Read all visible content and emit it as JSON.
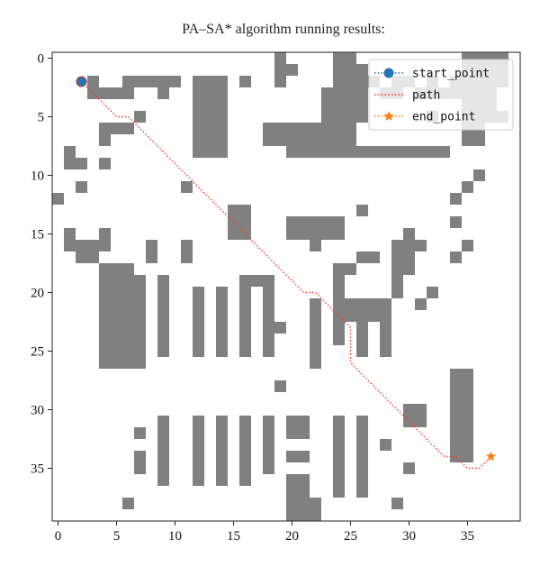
{
  "chart_data": {
    "type": "scatter",
    "title": "PA–SA* algorithm running results:",
    "xlabel": "",
    "ylabel": "",
    "xlim": [
      -0.5,
      39.5
    ],
    "ylim": [
      39.5,
      -0.5
    ],
    "y_inverted": true,
    "x_ticks": [
      0,
      5,
      10,
      15,
      20,
      25,
      30,
      35
    ],
    "y_ticks": [
      0,
      5,
      10,
      15,
      20,
      25,
      30,
      35
    ],
    "grid": false,
    "legend_position": "top-right",
    "obstacle_color": "#808080",
    "obstacles": [
      [
        0,
        19,
        1,
        1
      ],
      [
        0,
        24,
        1,
        2
      ],
      [
        0,
        35,
        1,
        1
      ],
      [
        0,
        36,
        1,
        3
      ],
      [
        1,
        19,
        1,
        2
      ],
      [
        1,
        24,
        1,
        3
      ],
      [
        1,
        35,
        1,
        4
      ],
      [
        2,
        3,
        1,
        1
      ],
      [
        2,
        6,
        1,
        3
      ],
      [
        2,
        9,
        1,
        2
      ],
      [
        2,
        12,
        1,
        3
      ],
      [
        2,
        16,
        1,
        1
      ],
      [
        2,
        19,
        1,
        1
      ],
      [
        2,
        24,
        1,
        4
      ],
      [
        2,
        29,
        1,
        2
      ],
      [
        2,
        32,
        1,
        1
      ],
      [
        2,
        34,
        1,
        5
      ],
      [
        3,
        3,
        1,
        4
      ],
      [
        3,
        9,
        1,
        1
      ],
      [
        3,
        12,
        1,
        3
      ],
      [
        3,
        23,
        1,
        4
      ],
      [
        3,
        28,
        1,
        2
      ],
      [
        3,
        31,
        1,
        3
      ],
      [
        3,
        34,
        1,
        4
      ],
      [
        4,
        12,
        1,
        3
      ],
      [
        4,
        23,
        1,
        4
      ],
      [
        4,
        35,
        1,
        3
      ],
      [
        5,
        7,
        1,
        1
      ],
      [
        5,
        12,
        1,
        3
      ],
      [
        5,
        23,
        1,
        4
      ],
      [
        5,
        32,
        1,
        1
      ],
      [
        5,
        35,
        1,
        4
      ],
      [
        6,
        4,
        1,
        3
      ],
      [
        6,
        12,
        1,
        3
      ],
      [
        6,
        18,
        1,
        8
      ],
      [
        6,
        35,
        1,
        2
      ],
      [
        7,
        4,
        1,
        1
      ],
      [
        7,
        12,
        1,
        3
      ],
      [
        7,
        18,
        1,
        8
      ],
      [
        7,
        35,
        1,
        2
      ],
      [
        8,
        1,
        1,
        1
      ],
      [
        8,
        12,
        1,
        3
      ],
      [
        8,
        20,
        1,
        14
      ],
      [
        9,
        1,
        1,
        2
      ],
      [
        9,
        4,
        1,
        1
      ],
      [
        10,
        36,
        1,
        1
      ],
      [
        11,
        2,
        1,
        1
      ],
      [
        11,
        11,
        1,
        1
      ],
      [
        11,
        35,
        1,
        1
      ],
      [
        12,
        0,
        1,
        1
      ],
      [
        12,
        34,
        1,
        1
      ],
      [
        13,
        15,
        1,
        2
      ],
      [
        13,
        26,
        1,
        1
      ],
      [
        14,
        15,
        1,
        2
      ],
      [
        14,
        20,
        1,
        5
      ],
      [
        14,
        34,
        1,
        1
      ],
      [
        15,
        1,
        1,
        1
      ],
      [
        15,
        4,
        1,
        1
      ],
      [
        15,
        15,
        1,
        2
      ],
      [
        15,
        20,
        1,
        5
      ],
      [
        15,
        30,
        1,
        1
      ],
      [
        16,
        1,
        1,
        2
      ],
      [
        16,
        3,
        1,
        2
      ],
      [
        16,
        8,
        1,
        1
      ],
      [
        16,
        11,
        1,
        1
      ],
      [
        16,
        22,
        1,
        1
      ],
      [
        16,
        29,
        1,
        3
      ],
      [
        16,
        35,
        1,
        1
      ],
      [
        17,
        2,
        1,
        1
      ],
      [
        17,
        3,
        1,
        1
      ],
      [
        17,
        8,
        1,
        1
      ],
      [
        17,
        11,
        1,
        1
      ],
      [
        17,
        26,
        1,
        2
      ],
      [
        17,
        29,
        1,
        2
      ],
      [
        17,
        34,
        1,
        1
      ],
      [
        18,
        4,
        1,
        3
      ],
      [
        18,
        24,
        1,
        2
      ],
      [
        18,
        29,
        1,
        2
      ],
      [
        19,
        4,
        1,
        4
      ],
      [
        19,
        9,
        1,
        1
      ],
      [
        19,
        16,
        1,
        1
      ],
      [
        19,
        17,
        1,
        1
      ],
      [
        19,
        18,
        1,
        1
      ],
      [
        19,
        24,
        1,
        1
      ],
      [
        19,
        29,
        1,
        1
      ],
      [
        20,
        4,
        1,
        4
      ],
      [
        20,
        9,
        1,
        1
      ],
      [
        20,
        12,
        1,
        1
      ],
      [
        20,
        14,
        1,
        1
      ],
      [
        20,
        16,
        1,
        1
      ],
      [
        20,
        18,
        1,
        1
      ],
      [
        20,
        24,
        1,
        1
      ],
      [
        20,
        29,
        1,
        1
      ],
      [
        20,
        32,
        1,
        1
      ],
      [
        21,
        4,
        1,
        4
      ],
      [
        21,
        9,
        1,
        1
      ],
      [
        21,
        12,
        1,
        1
      ],
      [
        21,
        14,
        1,
        1
      ],
      [
        21,
        16,
        1,
        1
      ],
      [
        21,
        18,
        1,
        1
      ],
      [
        21,
        22,
        1,
        1
      ],
      [
        21,
        24,
        1,
        1
      ],
      [
        21,
        25,
        1,
        1
      ],
      [
        21,
        26,
        1,
        1
      ],
      [
        21,
        27,
        1,
        1
      ],
      [
        21,
        28,
        1,
        1
      ],
      [
        21,
        31,
        1,
        1
      ],
      [
        22,
        4,
        1,
        4
      ],
      [
        22,
        9,
        1,
        1
      ],
      [
        22,
        12,
        1,
        1
      ],
      [
        22,
        14,
        1,
        1
      ],
      [
        22,
        16,
        1,
        1
      ],
      [
        22,
        18,
        1,
        1
      ],
      [
        22,
        22,
        1,
        1
      ],
      [
        22,
        24,
        1,
        1
      ],
      [
        22,
        25,
        1,
        1
      ],
      [
        22,
        26,
        1,
        1
      ],
      [
        22,
        27,
        1,
        1
      ],
      [
        22,
        28,
        1,
        1
      ],
      [
        23,
        4,
        1,
        4
      ],
      [
        23,
        9,
        1,
        1
      ],
      [
        23,
        12,
        1,
        1
      ],
      [
        23,
        14,
        1,
        1
      ],
      [
        23,
        16,
        1,
        1
      ],
      [
        23,
        18,
        1,
        1
      ],
      [
        23,
        19,
        1,
        1
      ],
      [
        23,
        22,
        1,
        1
      ],
      [
        23,
        24,
        1,
        1
      ],
      [
        23,
        26,
        1,
        1
      ],
      [
        23,
        28,
        1,
        1
      ],
      [
        24,
        4,
        1,
        4
      ],
      [
        24,
        9,
        1,
        1
      ],
      [
        24,
        12,
        1,
        1
      ],
      [
        24,
        14,
        1,
        1
      ],
      [
        24,
        16,
        1,
        1
      ],
      [
        24,
        18,
        1,
        1
      ],
      [
        24,
        22,
        1,
        1
      ],
      [
        24,
        24,
        1,
        1
      ],
      [
        24,
        26,
        1,
        1
      ],
      [
        24,
        28,
        1,
        1
      ],
      [
        25,
        4,
        1,
        4
      ],
      [
        25,
        9,
        1,
        1
      ],
      [
        25,
        12,
        1,
        1
      ],
      [
        25,
        14,
        1,
        1
      ],
      [
        25,
        16,
        1,
        1
      ],
      [
        25,
        18,
        1,
        1
      ],
      [
        25,
        22,
        1,
        1
      ],
      [
        25,
        26,
        1,
        1
      ],
      [
        25,
        28,
        1,
        1
      ],
      [
        26,
        4,
        1,
        4
      ],
      [
        26,
        22,
        1,
        1
      ],
      [
        27,
        34,
        1,
        1
      ],
      [
        27,
        35,
        1,
        1
      ],
      [
        28,
        19,
        1,
        1
      ],
      [
        28,
        34,
        1,
        2
      ],
      [
        29,
        34,
        1,
        2
      ],
      [
        30,
        34,
        1,
        2
      ],
      [
        30,
        30,
        1,
        2
      ],
      [
        31,
        9,
        1,
        1
      ],
      [
        31,
        12,
        1,
        1
      ],
      [
        31,
        14,
        1,
        1
      ],
      [
        31,
        16,
        1,
        1
      ],
      [
        31,
        18,
        1,
        1
      ],
      [
        31,
        20,
        1,
        2
      ],
      [
        31,
        24,
        1,
        1
      ],
      [
        31,
        26,
        1,
        1
      ],
      [
        31,
        30,
        1,
        2
      ],
      [
        31,
        34,
        1,
        2
      ],
      [
        32,
        7,
        1,
        1
      ],
      [
        32,
        9,
        1,
        1
      ],
      [
        32,
        12,
        1,
        1
      ],
      [
        32,
        14,
        1,
        1
      ],
      [
        32,
        16,
        1,
        1
      ],
      [
        32,
        18,
        1,
        1
      ],
      [
        32,
        20,
        1,
        2
      ],
      [
        32,
        24,
        1,
        1
      ],
      [
        32,
        26,
        1,
        1
      ],
      [
        32,
        34,
        1,
        2
      ],
      [
        33,
        9,
        1,
        1
      ],
      [
        33,
        12,
        1,
        1
      ],
      [
        33,
        14,
        1,
        1
      ],
      [
        33,
        16,
        1,
        1
      ],
      [
        33,
        18,
        1,
        1
      ],
      [
        33,
        24,
        1,
        1
      ],
      [
        33,
        26,
        1,
        1
      ],
      [
        33,
        28,
        1,
        1
      ],
      [
        33,
        34,
        1,
        2
      ],
      [
        34,
        7,
        1,
        1
      ],
      [
        34,
        9,
        1,
        1
      ],
      [
        34,
        12,
        1,
        1
      ],
      [
        34,
        14,
        1,
        1
      ],
      [
        34,
        16,
        1,
        1
      ],
      [
        34,
        18,
        1,
        1
      ],
      [
        34,
        20,
        1,
        2
      ],
      [
        34,
        24,
        1,
        1
      ],
      [
        34,
        26,
        1,
        1
      ],
      [
        34,
        34,
        1,
        2
      ],
      [
        35,
        7,
        1,
        1
      ],
      [
        35,
        9,
        1,
        1
      ],
      [
        35,
        12,
        1,
        1
      ],
      [
        35,
        14,
        1,
        1
      ],
      [
        35,
        16,
        1,
        1
      ],
      [
        35,
        18,
        1,
        1
      ],
      [
        35,
        24,
        1,
        1
      ],
      [
        35,
        26,
        1,
        1
      ],
      [
        35,
        30,
        1,
        1
      ],
      [
        36,
        9,
        1,
        1
      ],
      [
        36,
        12,
        1,
        1
      ],
      [
        36,
        14,
        1,
        1
      ],
      [
        36,
        16,
        1,
        1
      ],
      [
        36,
        20,
        1,
        1
      ],
      [
        36,
        21,
        1,
        1
      ],
      [
        36,
        24,
        1,
        1
      ],
      [
        36,
        26,
        1,
        1
      ],
      [
        37,
        20,
        1,
        2
      ],
      [
        37,
        24,
        1,
        1
      ],
      [
        37,
        26,
        1,
        1
      ],
      [
        38,
        6,
        1,
        1
      ],
      [
        38,
        20,
        1,
        3
      ],
      [
        38,
        29,
        1,
        1
      ],
      [
        39,
        20,
        1,
        3
      ]
    ],
    "series": [
      {
        "name": "start_point",
        "kind": "marker",
        "marker": "circle",
        "color": "#1f77b4",
        "x": [
          2
        ],
        "y": [
          2
        ]
      },
      {
        "name": "path",
        "kind": "line",
        "color": "#ff3b1f",
        "x": [
          2,
          3,
          4,
          5,
          6,
          7,
          8,
          9,
          10,
          11,
          12,
          13,
          14,
          15,
          16,
          17,
          18,
          19,
          20,
          21,
          22,
          23,
          24,
          25,
          25,
          26,
          27,
          28,
          29,
          30,
          31,
          32,
          33,
          34,
          35,
          36,
          37
        ],
        "y": [
          2,
          3,
          4,
          5,
          5,
          6,
          7,
          8,
          9,
          10,
          11,
          12,
          13,
          14,
          15,
          16,
          17,
          18,
          19,
          20,
          20,
          21,
          22,
          23,
          26,
          27,
          28,
          29,
          30,
          31,
          32,
          33,
          34,
          34,
          35,
          35,
          34
        ]
      },
      {
        "name": "end_point",
        "kind": "marker",
        "marker": "star",
        "color": "#ff7f0e",
        "x": [
          37
        ],
        "y": [
          34
        ]
      }
    ]
  }
}
